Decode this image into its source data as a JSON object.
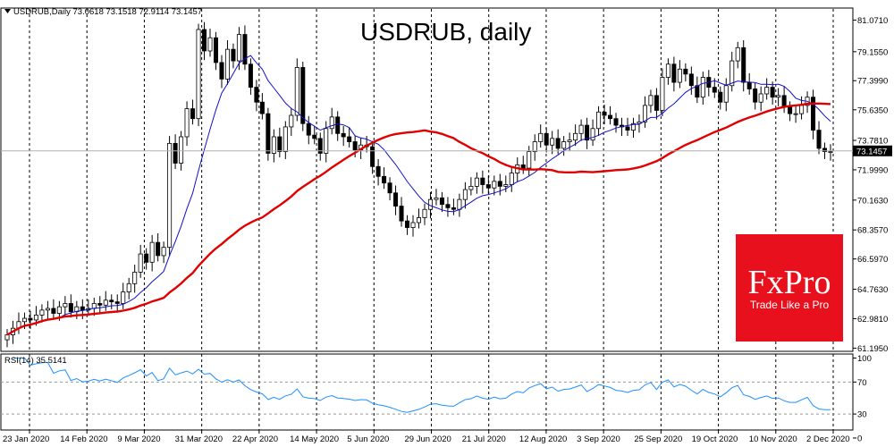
{
  "window": {
    "header": "USDRUB,Daily  73.0618 73.1518 72.9114 73.1457",
    "title": "USDRUB, daily",
    "current_price": "73.1457",
    "rsi_header": "RSI(14) 35.5141"
  },
  "logo": {
    "name": "FxPro",
    "tagline": "Trade Like a Pro",
    "color": "#e8101c"
  },
  "colors": {
    "bull": "#ffffff",
    "bear": "#000000",
    "ma_fast": "#1010c8",
    "ma_slow": "#e00000",
    "rsi": "#1e90ff",
    "grid": "#000000"
  },
  "chart_data": {
    "type": "candlestick",
    "y_axis": {
      "min": 61.0,
      "max": 81.8,
      "ticks": [
        "81.0710",
        "79.1550",
        "77.3990",
        "75.6350",
        "73.7810",
        "71.9990",
        "70.1630",
        "68.3570",
        "66.5970",
        "64.7630",
        "62.9810",
        "61.1950"
      ]
    },
    "x_axis_labels": [
      "23 Jan 2020",
      "14 Feb 2020",
      "9 Mar 2020",
      "31 Mar 2020",
      "22 Apr 2020",
      "14 May 2020",
      "5 Jun 2020",
      "29 Jun 2020",
      "21 Jul 2020",
      "12 Aug 2020",
      "3 Sep 2020",
      "25 Sep 2020",
      "19 Oct 2020",
      "10 Nov 2020",
      "2 Dec 2020"
    ],
    "close_series": [
      62.0,
      62.4,
      62.8,
      63.0,
      62.9,
      63.2,
      63.5,
      63.6,
      63.3,
      63.7,
      63.9,
      63.4,
      63.7,
      63.5,
      63.6,
      63.9,
      63.8,
      64.1,
      64.0,
      63.9,
      64.6,
      65.1,
      65.8,
      66.9,
      66.4,
      67.6,
      66.8,
      67.3,
      73.6,
      72.4,
      74.0,
      75.7,
      75.1,
      80.5,
      79.2,
      80.0,
      78.5,
      77.5,
      79.3,
      78.6,
      80.2,
      78.4,
      77.0,
      76.1,
      75.4,
      73.0,
      74.0,
      73.1,
      74.6,
      75.3,
      78.2,
      74.8,
      74.1,
      73.9,
      73.0,
      74.5,
      75.2,
      74.2,
      74.0,
      73.7,
      73.2,
      73.5,
      73.4,
      72.2,
      71.6,
      71.2,
      70.6,
      69.8,
      68.9,
      68.5,
      68.8,
      69.1,
      69.6,
      70.2,
      70.3,
      69.9,
      69.7,
      69.6,
      70.2,
      70.8,
      71.0,
      71.5,
      71.1,
      70.9,
      71.3,
      71.0,
      71.1,
      71.8,
      72.3,
      72.1,
      73.1,
      73.7,
      74.2,
      73.5,
      73.9,
      73.3,
      73.7,
      73.8,
      74.2,
      74.7,
      73.8,
      74.5,
      75.5,
      75.3,
      75.1,
      74.7,
      74.6,
      74.4,
      74.8,
      74.9,
      75.9,
      76.5,
      75.6,
      77.6,
      78.4,
      77.3,
      78.1,
      77.8,
      77.1,
      76.4,
      77.6,
      77.0,
      76.7,
      76.1,
      77.1,
      78.6,
      79.4,
      77.3,
      76.9,
      76.1,
      76.6,
      77.0,
      76.4,
      76.5,
      75.8,
      75.4,
      75.4,
      75.9,
      76.4,
      74.4,
      73.3,
      73.1,
      73.1
    ]
  }
}
